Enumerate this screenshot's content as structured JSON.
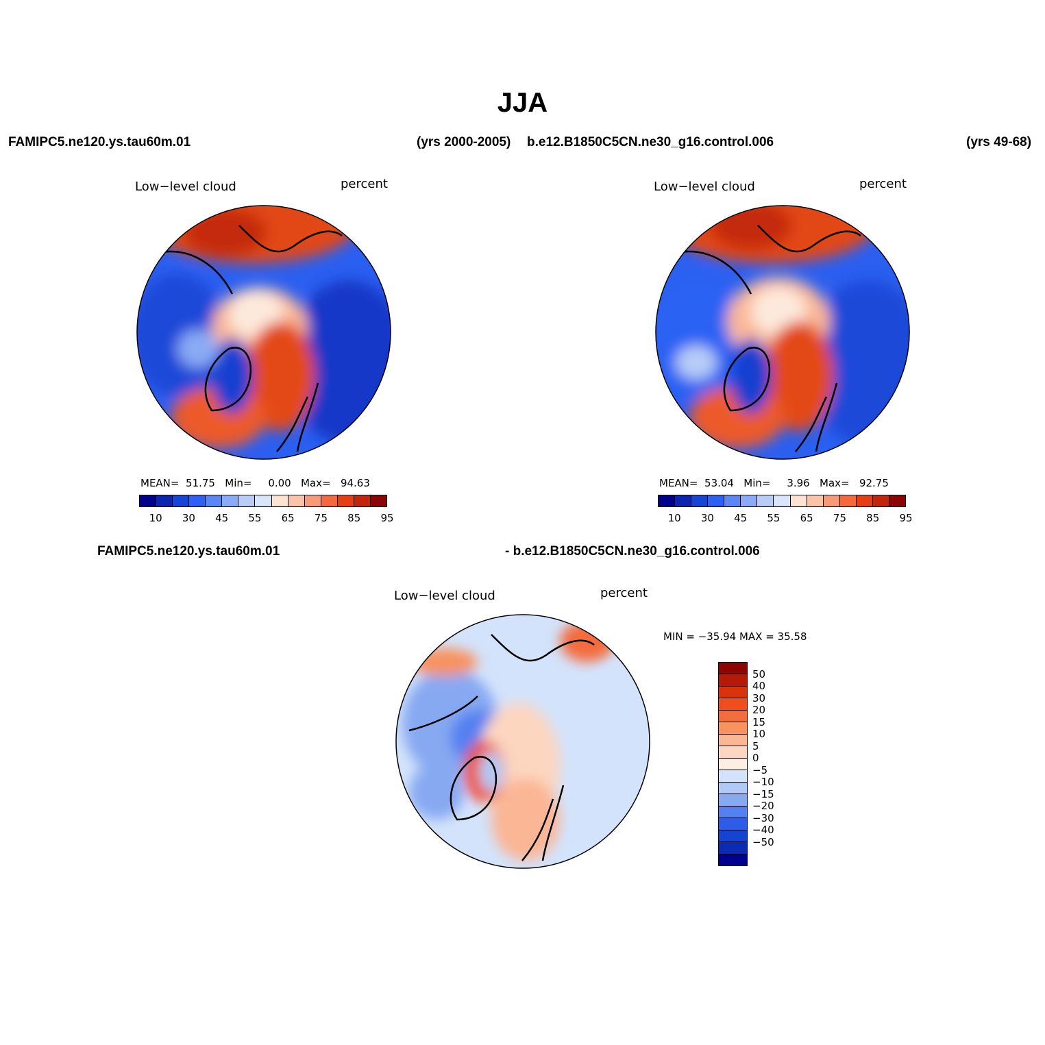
{
  "figure": {
    "title": "JJA",
    "case1_name": "FAMIPC5.ne120.ys.tau60m.01",
    "case1_years": "(yrs 2000-2005)",
    "case2_name": "b.e12.B1850C5CN.ne30_g16.control.006",
    "case2_years": "(yrs 49-68)",
    "diff_left": "FAMIPC5.ne120.ys.tau60m.01",
    "diff_right": "- b.e12.B1850C5CN.ne30_g16.control.006"
  },
  "panels": [
    {
      "variable": "Low−level cloud",
      "units": "percent",
      "mean_label": "MEAN=",
      "mean": "51.75",
      "min_label": "Min=",
      "min": "0.00",
      "max_label": "Max=",
      "max": "94.63"
    },
    {
      "variable": "Low−level cloud",
      "units": "percent",
      "mean_label": "MEAN=",
      "mean": "53.04",
      "min_label": "Min=",
      "min": "3.96",
      "max_label": "Max=",
      "max": "92.75"
    },
    {
      "variable": "Low−level cloud",
      "units": "percent",
      "stats_text": "MIN = −35.94 MAX =   35.58"
    }
  ],
  "colorbar_abs": {
    "labels": [
      "10",
      "30",
      "45",
      "55",
      "65",
      "75",
      "85",
      "95"
    ],
    "colors": [
      "#00008c",
      "#0b25b0",
      "#1546d6",
      "#2b62f3",
      "#5b86f5",
      "#8aabf5",
      "#b7cdf7",
      "#d7e6fb",
      "#fde4d2",
      "#fcc4a6",
      "#f89a76",
      "#f3683c",
      "#e43e12",
      "#c2250a",
      "#8c0505"
    ]
  },
  "colorbar_diff": {
    "labels": [
      "50",
      "40",
      "30",
      "20",
      "15",
      "10",
      "5",
      "0",
      "−5",
      "−10",
      "−15",
      "−20",
      "−30",
      "−40",
      "−50"
    ],
    "colors": [
      "#8c0505",
      "#b51a08",
      "#d9330b",
      "#f04e1f",
      "#f46c3c",
      "#f8925f",
      "#fbb695",
      "#fdd6bf",
      "#fdeee2",
      "#d3e3fb",
      "#b0c9f5",
      "#87a9f2",
      "#5580f0",
      "#2d5bea",
      "#1545d0",
      "#0b2cb2",
      "#00008c"
    ]
  }
}
